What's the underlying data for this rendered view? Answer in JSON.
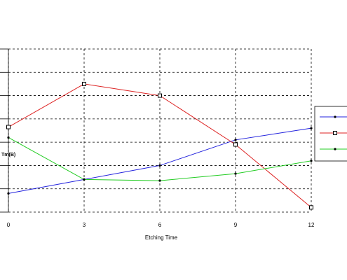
{
  "chart_data": {
    "type": "line",
    "title": "",
    "xlabel": "Etching Time",
    "ylabel": "Tm(B)",
    "x": [
      0,
      3,
      6,
      9,
      12
    ],
    "xlim": [
      0,
      12
    ],
    "ylim": [
      0,
      7
    ],
    "grid": true,
    "legend_position": "right",
    "series": [
      {
        "values": [
          0.8,
          1.4,
          2.0,
          3.1,
          3.6
        ],
        "color": "#2222dd",
        "marker": "dot"
      },
      {
        "values": [
          3.65,
          5.5,
          5.0,
          2.9,
          0.2
        ],
        "color": "#dd2222",
        "marker": "open-square"
      },
      {
        "values": [
          3.2,
          1.4,
          1.35,
          1.65,
          2.2
        ],
        "color": "#22cc22",
        "marker": "dot"
      }
    ]
  }
}
